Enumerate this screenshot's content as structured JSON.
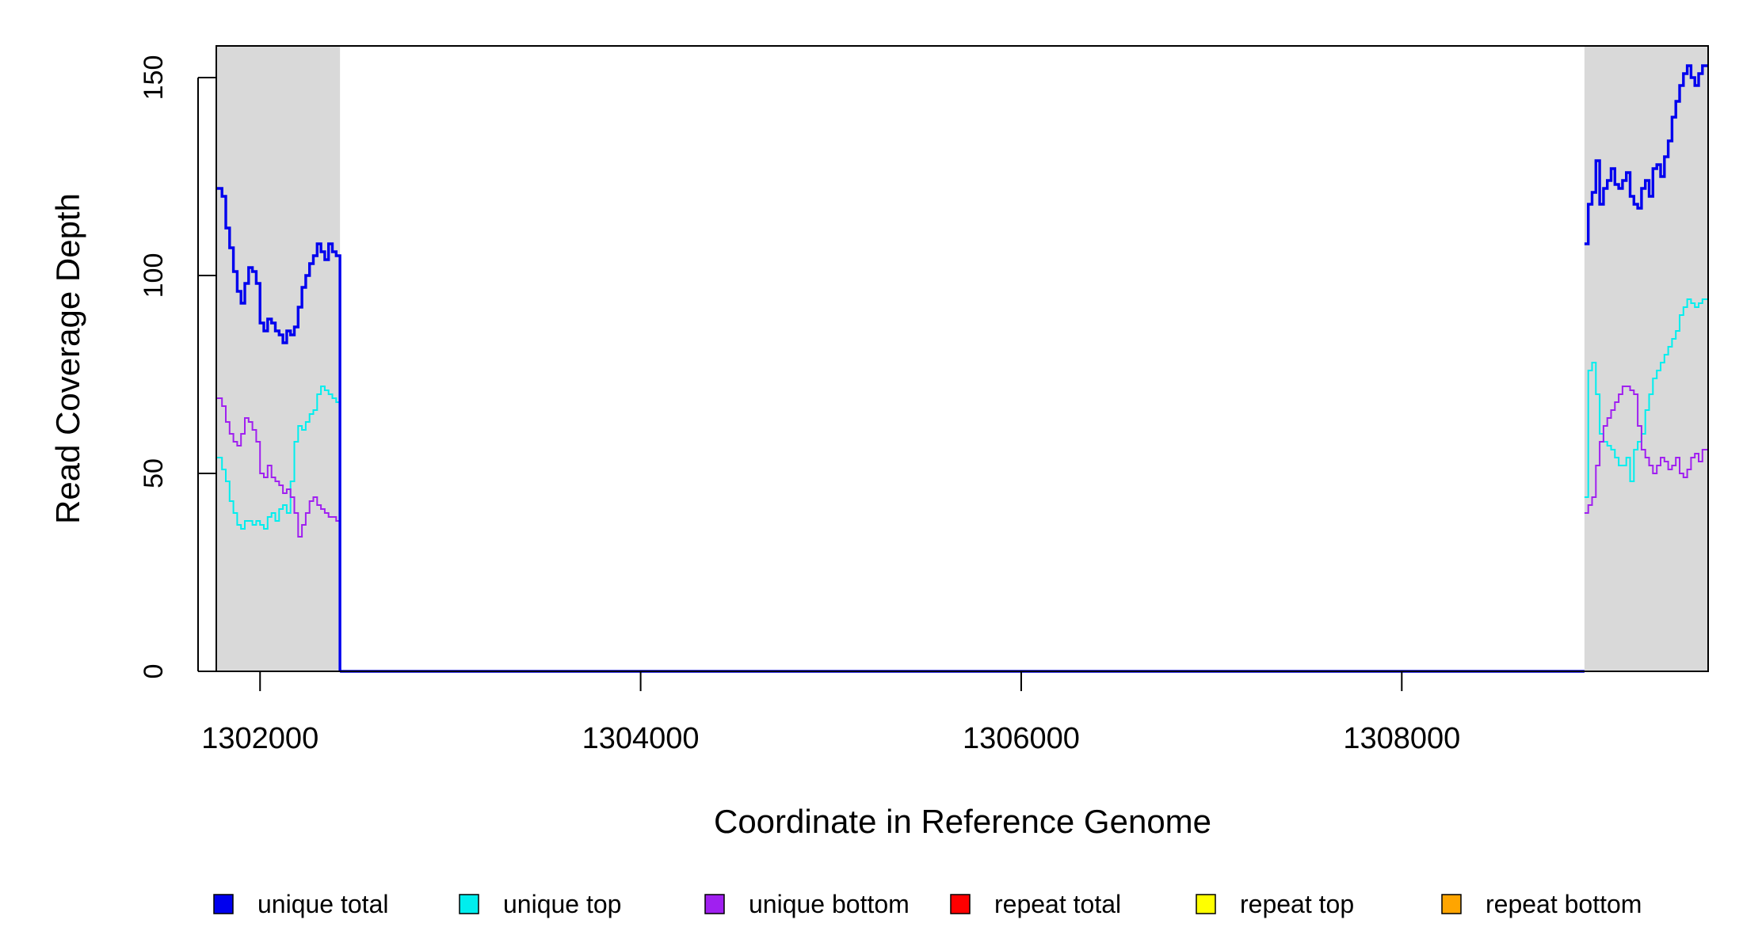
{
  "chart_data": {
    "type": "line",
    "title": "",
    "xlabel": "Coordinate in Reference Genome",
    "ylabel": "Read Coverage Depth",
    "xlim": [
      1301770,
      1309610
    ],
    "ylim": [
      0,
      158
    ],
    "x_ticks": [
      1302000,
      1304000,
      1306000,
      1308000
    ],
    "x_tick_labels": [
      "1302000",
      "1304000",
      "1306000",
      "1308000"
    ],
    "y_ticks": [
      0,
      50,
      100,
      150
    ],
    "y_tick_labels": [
      "0",
      "50",
      "100",
      "150"
    ],
    "grid": false,
    "legend_position": "bottom",
    "shaded_regions": [
      {
        "x_start": 1301770,
        "x_end": 1302420,
        "color": "#d9d9d9"
      },
      {
        "x_start": 1308960,
        "x_end": 1309610,
        "color": "#d9d9d9"
      }
    ],
    "series": [
      {
        "name": "unique total",
        "color": "#0000ee",
        "segments": [
          {
            "x": [
              1301770,
              1301800,
              1301820,
              1301840,
              1301860,
              1301880,
              1301900,
              1301920,
              1301940,
              1301960,
              1301980,
              1302000,
              1302020,
              1302040,
              1302060,
              1302080,
              1302100,
              1302120,
              1302140,
              1302160,
              1302180,
              1302200,
              1302220,
              1302240,
              1302260,
              1302280,
              1302300,
              1302320,
              1302340,
              1302360,
              1302380,
              1302400,
              1302420
            ],
            "y": [
              122,
              120,
              112,
              107,
              101,
              96,
              93,
              98,
              102,
              101,
              98,
              88,
              86,
              89,
              88,
              86,
              85,
              83,
              86,
              85,
              87,
              92,
              97,
              100,
              103,
              105,
              108,
              106,
              104,
              108,
              106,
              105,
              0
            ]
          },
          {
            "x": [
              1302420,
              1308960
            ],
            "y": [
              0,
              0
            ]
          },
          {
            "x": [
              1308960,
              1308980,
              1309000,
              1309020,
              1309040,
              1309060,
              1309080,
              1309100,
              1309120,
              1309140,
              1309160,
              1309180,
              1309200,
              1309220,
              1309240,
              1309260,
              1309280,
              1309300,
              1309320,
              1309340,
              1309360,
              1309380,
              1309400,
              1309420,
              1309440,
              1309460,
              1309480,
              1309500,
              1309520,
              1309540,
              1309560,
              1309580,
              1309610
            ],
            "y": [
              108,
              118,
              121,
              129,
              118,
              122,
              124,
              127,
              123,
              122,
              124,
              126,
              120,
              118,
              117,
              122,
              124,
              120,
              127,
              128,
              125,
              130,
              134,
              140,
              144,
              148,
              151,
              153,
              150,
              148,
              151,
              153,
              153
            ]
          }
        ]
      },
      {
        "name": "unique top",
        "color": "#00eeee",
        "segments": [
          {
            "x": [
              1301770,
              1301800,
              1301820,
              1301840,
              1301860,
              1301880,
              1301900,
              1301920,
              1301940,
              1301960,
              1301980,
              1302000,
              1302020,
              1302040,
              1302060,
              1302080,
              1302100,
              1302120,
              1302140,
              1302160,
              1302180,
              1302200,
              1302220,
              1302240,
              1302260,
              1302280,
              1302300,
              1302320,
              1302340,
              1302360,
              1302380,
              1302400,
              1302420
            ],
            "y": [
              54,
              51,
              48,
              43,
              40,
              37,
              36,
              38,
              38,
              37,
              38,
              37,
              36,
              39,
              40,
              38,
              41,
              42,
              40,
              48,
              58,
              62,
              61,
              63,
              65,
              66,
              70,
              72,
              71,
              70,
              69,
              68,
              0
            ]
          },
          {
            "x": [
              1302420,
              1308960
            ],
            "y": [
              0,
              0
            ]
          },
          {
            "x": [
              1308960,
              1308980,
              1309000,
              1309020,
              1309040,
              1309060,
              1309080,
              1309100,
              1309120,
              1309140,
              1309160,
              1309180,
              1309200,
              1309220,
              1309240,
              1309260,
              1309280,
              1309300,
              1309320,
              1309340,
              1309360,
              1309380,
              1309400,
              1309420,
              1309440,
              1309460,
              1309480,
              1309500,
              1309520,
              1309540,
              1309560,
              1309580,
              1309610
            ],
            "y": [
              44,
              76,
              78,
              70,
              60,
              58,
              57,
              56,
              54,
              52,
              52,
              54,
              48,
              56,
              58,
              60,
              66,
              70,
              74,
              76,
              78,
              80,
              82,
              84,
              86,
              90,
              92,
              94,
              93,
              92,
              93,
              94,
              95
            ]
          }
        ]
      },
      {
        "name": "unique bottom",
        "color": "#a020f0",
        "segments": [
          {
            "x": [
              1301770,
              1301800,
              1301820,
              1301840,
              1301860,
              1301880,
              1301900,
              1301920,
              1301940,
              1301960,
              1301980,
              1302000,
              1302020,
              1302040,
              1302060,
              1302080,
              1302100,
              1302120,
              1302140,
              1302160,
              1302180,
              1302200,
              1302220,
              1302240,
              1302260,
              1302280,
              1302300,
              1302320,
              1302340,
              1302360,
              1302380,
              1302400,
              1302420
            ],
            "y": [
              69,
              67,
              63,
              60,
              58,
              57,
              60,
              64,
              63,
              61,
              58,
              50,
              49,
              52,
              49,
              48,
              47,
              45,
              46,
              44,
              40,
              34,
              37,
              40,
              43,
              44,
              42,
              41,
              40,
              39,
              39,
              38,
              0
            ]
          },
          {
            "x": [
              1302420,
              1308960
            ],
            "y": [
              0,
              0
            ]
          },
          {
            "x": [
              1308960,
              1308980,
              1309000,
              1309020,
              1309040,
              1309060,
              1309080,
              1309100,
              1309120,
              1309140,
              1309160,
              1309180,
              1309200,
              1309220,
              1309240,
              1309260,
              1309280,
              1309300,
              1309320,
              1309340,
              1309360,
              1309380,
              1309400,
              1309420,
              1309440,
              1309460,
              1309480,
              1309500,
              1309520,
              1309540,
              1309560,
              1309580,
              1309610
            ],
            "y": [
              40,
              42,
              44,
              52,
              58,
              62,
              64,
              66,
              68,
              70,
              72,
              72,
              71,
              70,
              62,
              56,
              54,
              52,
              50,
              52,
              54,
              53,
              51,
              52,
              54,
              50,
              49,
              51,
              54,
              55,
              53,
              56,
              58
            ]
          }
        ]
      },
      {
        "name": "repeat total",
        "color": "#ff0000",
        "segments": [
          {
            "x": [
              1301770,
              1309610
            ],
            "y": [
              0,
              0
            ]
          }
        ]
      },
      {
        "name": "repeat top",
        "color": "#ffff00",
        "segments": [
          {
            "x": [
              1301770,
              1309610
            ],
            "y": [
              0,
              0
            ]
          }
        ]
      },
      {
        "name": "repeat bottom",
        "color": "#ffa500",
        "segments": [
          {
            "x": [
              1301770,
              1302420
            ],
            "y": [
              0,
              0
            ]
          },
          {
            "x": [
              1308960,
              1309610
            ],
            "y": [
              0,
              0
            ]
          }
        ]
      }
    ],
    "legend_entries": [
      {
        "label": "unique total",
        "color": "#0000ee"
      },
      {
        "label": "unique top",
        "color": "#00eeee"
      },
      {
        "label": "unique bottom",
        "color": "#a020f0"
      },
      {
        "label": "repeat total",
        "color": "#ff0000"
      },
      {
        "label": "repeat top",
        "color": "#ffff00"
      },
      {
        "label": "repeat bottom",
        "color": "#ffa500"
      }
    ]
  }
}
